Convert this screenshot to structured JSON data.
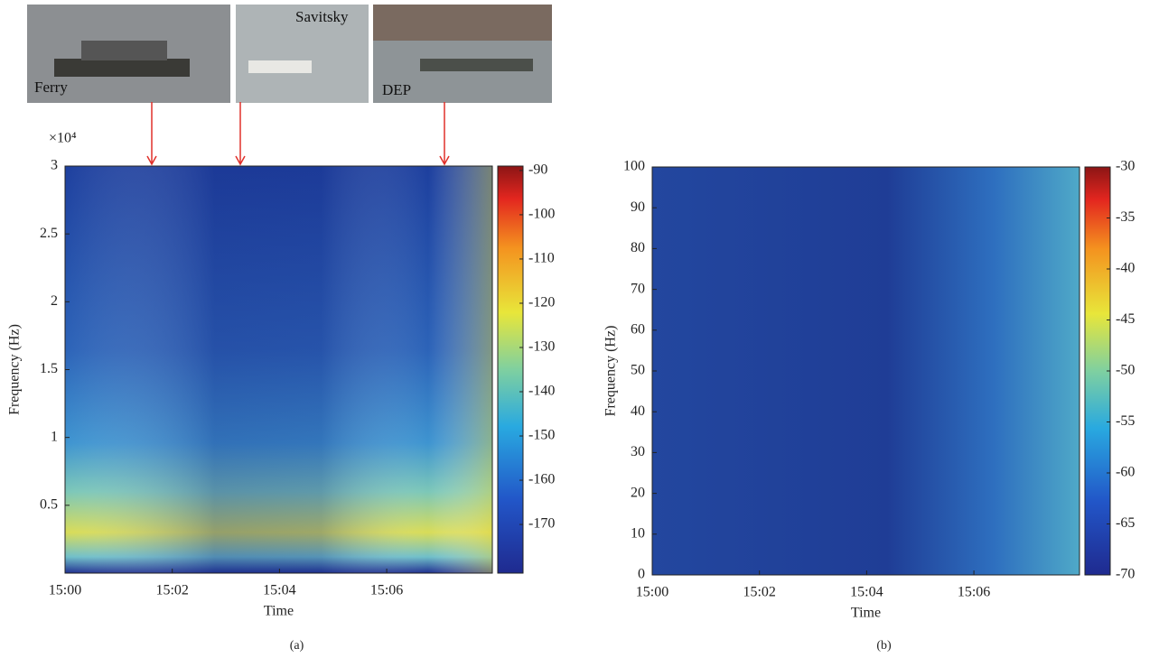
{
  "photos": [
    {
      "label": "Ferry"
    },
    {
      "label": "Savitsky"
    },
    {
      "label": "DEP"
    }
  ],
  "chart_data": [
    {
      "type": "spectrogram",
      "caption": "(a)",
      "x_label": "Time",
      "y_label": "Frequency (Hz)",
      "y_multiplier": "×10⁴",
      "colormap": "jet",
      "xlim": [
        0,
        7.97
      ],
      "xticks": [
        {
          "value": 0,
          "label": "15:00"
        },
        {
          "value": 2,
          "label": "15:02"
        },
        {
          "value": 4,
          "label": "15:04"
        },
        {
          "value": 6,
          "label": "15:06"
        }
      ],
      "ylim": [
        0,
        3
      ],
      "yticks": [
        0.5,
        1,
        1.5,
        2,
        2.5,
        3
      ],
      "clim": [
        -181,
        -89
      ],
      "cticks": [
        -90,
        -100,
        -110,
        -120,
        -130,
        -140,
        -150,
        -160,
        -170
      ]
    },
    {
      "type": "spectrogram",
      "caption": "(b)",
      "x_label": "Time",
      "y_label": "Frequency (Hz)",
      "colormap": "jet",
      "xlim": [
        0,
        7.97
      ],
      "xticks": [
        {
          "value": 0,
          "label": "15:00"
        },
        {
          "value": 2,
          "label": "15:02"
        },
        {
          "value": 4,
          "label": "15:04"
        },
        {
          "value": 6,
          "label": "15:06"
        }
      ],
      "ylim": [
        0,
        100
      ],
      "yticks": [
        0,
        10,
        20,
        30,
        40,
        50,
        60,
        70,
        80,
        90,
        100
      ],
      "clim": [
        -70,
        -30
      ],
      "cticks": [
        -30,
        -35,
        -40,
        -45,
        -50,
        -55,
        -60,
        -65,
        -70
      ]
    }
  ]
}
